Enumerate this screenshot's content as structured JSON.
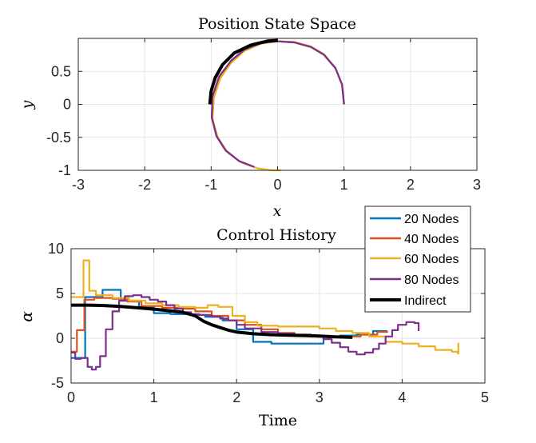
{
  "colors": {
    "s20": "#0072BD",
    "s40": "#D95319",
    "s60": "#EDB120",
    "s80": "#7E2F8E",
    "indirect": "#000000",
    "grid": "#e6e6e6",
    "axis": "#262626"
  },
  "chart_data": [
    {
      "type": "line",
      "title": "Position State Space",
      "xlabel": "x",
      "ylabel": "y",
      "xlim": [
        -3,
        3
      ],
      "ylim": [
        -1,
        1
      ],
      "xticks": [
        -3,
        -2,
        -1,
        0,
        1,
        2,
        3
      ],
      "yticks": [
        -1,
        -0.5,
        0,
        0.5
      ],
      "xtick_labels": [
        "-3",
        "-2",
        "-1",
        "0",
        "1",
        "2",
        "3"
      ],
      "ytick_labels": [
        "-1",
        "-0.5",
        "0",
        "0.5"
      ],
      "grid": true,
      "series": [
        {
          "key": "s20",
          "values": [
            [
              1.0,
              0.0
            ],
            [
              0.97,
              0.3
            ],
            [
              0.87,
              0.55
            ],
            [
              0.7,
              0.75
            ],
            [
              0.5,
              0.87
            ],
            [
              0.25,
              0.94
            ],
            [
              0.0,
              0.955
            ],
            [
              -0.25,
              0.93
            ],
            [
              -0.5,
              0.83
            ],
            [
              -0.7,
              0.66
            ],
            [
              -0.88,
              0.42
            ],
            [
              -0.98,
              0.12
            ],
            [
              -0.99,
              -0.2
            ],
            [
              -0.92,
              -0.48
            ],
            [
              -0.78,
              -0.7
            ],
            [
              -0.58,
              -0.86
            ],
            [
              -0.35,
              -0.95
            ]
          ]
        },
        {
          "key": "s40",
          "values": [
            [
              1.0,
              0.0
            ],
            [
              0.97,
              0.3
            ],
            [
              0.87,
              0.55
            ],
            [
              0.7,
              0.75
            ],
            [
              0.5,
              0.87
            ],
            [
              0.25,
              0.94
            ],
            [
              0.0,
              0.955
            ],
            [
              -0.25,
              0.93
            ],
            [
              -0.5,
              0.83
            ],
            [
              -0.7,
              0.66
            ],
            [
              -0.88,
              0.42
            ],
            [
              -0.98,
              0.12
            ],
            [
              -0.99,
              -0.2
            ],
            [
              -0.92,
              -0.48
            ],
            [
              -0.78,
              -0.7
            ],
            [
              -0.58,
              -0.86
            ],
            [
              -0.35,
              -0.95
            ]
          ]
        },
        {
          "key": "s60",
          "values": [
            [
              1.0,
              0.0
            ],
            [
              0.97,
              0.3
            ],
            [
              0.87,
              0.55
            ],
            [
              0.7,
              0.76
            ],
            [
              0.5,
              0.88
            ],
            [
              0.25,
              0.945
            ],
            [
              0.0,
              0.955
            ],
            [
              -0.25,
              0.92
            ],
            [
              -0.5,
              0.81
            ],
            [
              -0.7,
              0.63
            ],
            [
              -0.86,
              0.4
            ],
            [
              -0.96,
              0.1
            ],
            [
              -0.98,
              -0.22
            ],
            [
              -0.9,
              -0.5
            ],
            [
              -0.75,
              -0.73
            ],
            [
              -0.55,
              -0.88
            ],
            [
              -0.3,
              -0.97
            ],
            [
              -0.1,
              -1.0
            ],
            [
              0.05,
              -1.0
            ]
          ]
        },
        {
          "key": "s80",
          "values": [
            [
              1.0,
              0.0
            ],
            [
              0.97,
              0.3
            ],
            [
              0.87,
              0.55
            ],
            [
              0.7,
              0.75
            ],
            [
              0.5,
              0.87
            ],
            [
              0.25,
              0.94
            ],
            [
              0.0,
              0.955
            ],
            [
              -0.25,
              0.93
            ],
            [
              -0.5,
              0.83
            ],
            [
              -0.7,
              0.66
            ],
            [
              -0.88,
              0.42
            ],
            [
              -0.98,
              0.12
            ],
            [
              -0.99,
              -0.2
            ],
            [
              -0.92,
              -0.48
            ],
            [
              -0.78,
              -0.7
            ],
            [
              -0.58,
              -0.86
            ],
            [
              -0.35,
              -0.95
            ]
          ]
        },
        {
          "key": "indirect",
          "values": [
            [
              -1.02,
              0.0
            ],
            [
              -1.0,
              0.2
            ],
            [
              -0.94,
              0.4
            ],
            [
              -0.83,
              0.6
            ],
            [
              -0.65,
              0.78
            ],
            [
              -0.4,
              0.9
            ],
            [
              -0.15,
              0.96
            ],
            [
              0.0,
              0.97
            ]
          ]
        }
      ]
    },
    {
      "type": "line",
      "title": "Control History",
      "xlabel": "Time",
      "ylabel": "α",
      "xlim": [
        0,
        5
      ],
      "ylim": [
        -5,
        10
      ],
      "xticks": [
        0,
        1,
        2,
        3,
        4,
        5
      ],
      "yticks": [
        -5,
        0,
        5,
        10
      ],
      "xtick_labels": [
        "0",
        "1",
        "2",
        "3",
        "4",
        "5"
      ],
      "ytick_labels": [
        "-5",
        "0",
        "5",
        "10"
      ],
      "grid": true,
      "legend_position": "top-right",
      "series": [
        {
          "key": "s20",
          "name": "20 Nodes",
          "step": true,
          "values": [
            [
              0,
              -2.2
            ],
            [
              0.17,
              4.6
            ],
            [
              0.38,
              5.4
            ],
            [
              0.6,
              4.2
            ],
            [
              0.82,
              3.5
            ],
            [
              1.0,
              2.8
            ],
            [
              1.2,
              2.7
            ],
            [
              1.43,
              2.6
            ],
            [
              1.62,
              2.4
            ],
            [
              1.83,
              2.0
            ],
            [
              2.0,
              1.0
            ],
            [
              2.2,
              -0.4
            ],
            [
              2.42,
              -0.6
            ],
            [
              2.82,
              -0.6
            ],
            [
              3.05,
              0.2
            ],
            [
              3.25,
              0.3
            ],
            [
              3.45,
              0.4
            ],
            [
              3.65,
              0.8
            ],
            [
              3.82,
              0.8
            ]
          ]
        },
        {
          "key": "s40",
          "name": "40 Nodes",
          "step": true,
          "values": [
            [
              0,
              -1.5
            ],
            [
              0.07,
              0.9
            ],
            [
              0.16,
              4.3
            ],
            [
              0.28,
              4.5
            ],
            [
              0.5,
              4.4
            ],
            [
              0.68,
              4.1
            ],
            [
              0.85,
              3.6
            ],
            [
              1.1,
              3.4
            ],
            [
              1.3,
              3.3
            ],
            [
              1.5,
              3.0
            ],
            [
              1.7,
              2.5
            ],
            [
              1.9,
              2.0
            ],
            [
              2.1,
              1.5
            ],
            [
              2.3,
              1.0
            ],
            [
              2.5,
              0.6
            ],
            [
              2.7,
              0.4
            ],
            [
              2.9,
              0.2
            ],
            [
              3.1,
              0.1
            ],
            [
              3.3,
              0.2
            ],
            [
              3.5,
              0.4
            ],
            [
              3.7,
              0.7
            ],
            [
              3.82,
              0.8
            ]
          ]
        },
        {
          "key": "s60",
          "name": "60 Nodes",
          "step": true,
          "values": [
            [
              0,
              4.6
            ],
            [
              0.15,
              8.7
            ],
            [
              0.22,
              5.3
            ],
            [
              0.3,
              4.8
            ],
            [
              0.5,
              4.5
            ],
            [
              0.7,
              4.2
            ],
            [
              0.9,
              3.9
            ],
            [
              1.1,
              3.7
            ],
            [
              1.3,
              3.5
            ],
            [
              1.5,
              3.4
            ],
            [
              1.65,
              3.7
            ],
            [
              1.78,
              3.5
            ],
            [
              1.95,
              2.5
            ],
            [
              2.1,
              1.8
            ],
            [
              2.25,
              1.4
            ],
            [
              2.5,
              1.3
            ],
            [
              2.8,
              1.3
            ],
            [
              3.0,
              1.1
            ],
            [
              3.2,
              0.8
            ],
            [
              3.4,
              0.6
            ],
            [
              3.6,
              0.2
            ],
            [
              3.8,
              -0.4
            ],
            [
              4.0,
              -0.6
            ],
            [
              4.2,
              -0.9
            ],
            [
              4.4,
              -1.3
            ],
            [
              4.6,
              -1.5
            ],
            [
              4.67,
              -1.7
            ],
            [
              4.68,
              -0.5
            ]
          ]
        },
        {
          "key": "s80",
          "name": "80 Nodes",
          "step": true,
          "values": [
            [
              0,
              -1.6
            ],
            [
              0.05,
              -2.3
            ],
            [
              0.12,
              -2.2
            ],
            [
              0.2,
              -3.2
            ],
            [
              0.25,
              -3.5
            ],
            [
              0.3,
              -3.2
            ],
            [
              0.35,
              -2.0
            ],
            [
              0.42,
              1.0
            ],
            [
              0.5,
              3.0
            ],
            [
              0.58,
              4.2
            ],
            [
              0.65,
              4.7
            ],
            [
              0.75,
              4.8
            ],
            [
              0.85,
              4.6
            ],
            [
              0.95,
              4.3
            ],
            [
              1.05,
              4.1
            ],
            [
              1.15,
              3.7
            ],
            [
              1.25,
              3.3
            ],
            [
              1.35,
              2.9
            ],
            [
              1.45,
              2.7
            ],
            [
              1.55,
              2.6
            ],
            [
              1.7,
              2.4
            ],
            [
              1.8,
              2.2
            ],
            [
              1.9,
              2.0
            ],
            [
              2.0,
              1.5
            ],
            [
              2.1,
              1.1
            ],
            [
              2.3,
              0.7
            ],
            [
              2.5,
              0.5
            ],
            [
              2.7,
              0.4
            ],
            [
              2.9,
              0.2
            ],
            [
              3.05,
              -0.1
            ],
            [
              3.15,
              -0.5
            ],
            [
              3.25,
              -1.0
            ],
            [
              3.35,
              -1.5
            ],
            [
              3.45,
              -1.8
            ],
            [
              3.55,
              -1.6
            ],
            [
              3.65,
              -1.2
            ],
            [
              3.72,
              -0.6
            ],
            [
              3.8,
              0.2
            ],
            [
              3.88,
              0.9
            ],
            [
              3.95,
              1.5
            ],
            [
              4.05,
              1.8
            ],
            [
              4.15,
              1.7
            ],
            [
              4.2,
              0.8
            ]
          ]
        },
        {
          "key": "indirect",
          "name": "Indirect",
          "step": false,
          "values": [
            [
              0,
              3.7
            ],
            [
              0.2,
              3.7
            ],
            [
              0.4,
              3.65
            ],
            [
              0.6,
              3.55
            ],
            [
              0.8,
              3.4
            ],
            [
              1.0,
              3.25
            ],
            [
              1.2,
              3.05
            ],
            [
              1.35,
              2.9
            ],
            [
              1.5,
              2.5
            ],
            [
              1.6,
              1.9
            ],
            [
              1.7,
              1.5
            ],
            [
              1.8,
              1.2
            ],
            [
              1.9,
              0.9
            ],
            [
              2.0,
              0.7
            ],
            [
              2.2,
              0.5
            ],
            [
              2.4,
              0.4
            ],
            [
              2.6,
              0.35
            ],
            [
              2.8,
              0.3
            ],
            [
              3.0,
              0.25
            ],
            [
              3.2,
              0.15
            ],
            [
              3.4,
              0.1
            ]
          ]
        }
      ]
    }
  ]
}
